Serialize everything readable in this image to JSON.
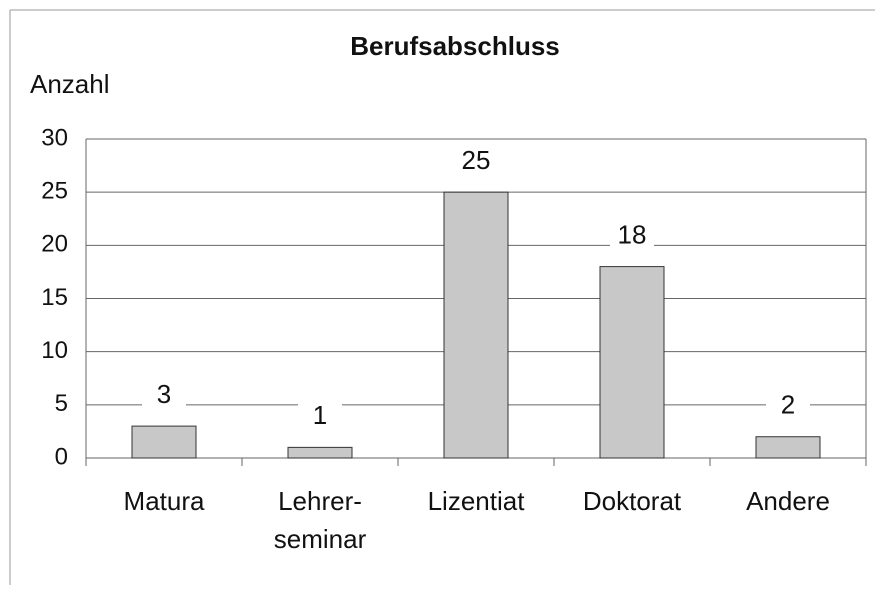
{
  "chart_data": {
    "type": "bar",
    "title": "Berufsabschluss",
    "y_label": "Anzahl",
    "categories": [
      "Matura",
      "Lehrer-\nseminar",
      "Lizentiat",
      "Doktorat",
      "Andere"
    ],
    "values": [
      3,
      1,
      25,
      18,
      2
    ],
    "color": "#c8c8c8",
    "ylim": [
      0,
      30
    ],
    "yticks": [
      0,
      5,
      10,
      15,
      20,
      25,
      30
    ],
    "grid": true
  }
}
